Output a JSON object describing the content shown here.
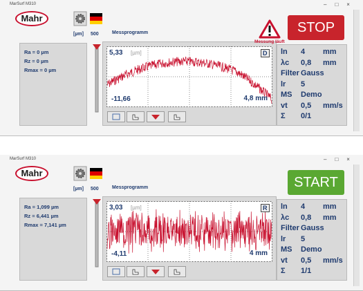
{
  "windows": [
    {
      "title_bar": "MarSurf M310",
      "logo": "Mahr",
      "scale_unit": "[µm]",
      "scale_value": "500",
      "program_label": "Messprogramm",
      "status": "Messung läuft",
      "button": "STOP",
      "results": [
        "Ra = 0 µm",
        "Rz = 0 µm",
        "Rmax = 0 µm"
      ],
      "chart": {
        "y_max": "5,33",
        "y_unit": "[µm]",
        "mode": "D",
        "y_min": "-11,66",
        "length": "4,8 mm"
      },
      "parameters": [
        [
          "ln",
          "4",
          "mm"
        ],
        [
          "λc",
          "0,8",
          "mm"
        ],
        [
          "Filter",
          "Gauss"
        ],
        [
          "lr",
          "5"
        ],
        [
          "MS",
          "Demo"
        ],
        [
          "vt",
          "0,5",
          "mm/s"
        ],
        [
          "Σ",
          "0/1"
        ]
      ]
    },
    {
      "title_bar": "MarSurf M310",
      "logo": "Mahr",
      "scale_unit": "[µm]",
      "scale_value": "500",
      "program_label": "Messprogramm",
      "button": "START",
      "results": [
        "Ra = 1,099 µm",
        "Rz = 6,441 µm",
        "Rmax = 7,141 µm"
      ],
      "chart": {
        "y_max": "3,03",
        "y_unit": "[µm]",
        "mode": "R",
        "y_min": "-4,11",
        "length": "4 mm"
      },
      "parameters": [
        [
          "ln",
          "4",
          "mm"
        ],
        [
          "λc",
          "0,8",
          "mm"
        ],
        [
          "Filter",
          "Gauss"
        ],
        [
          "lr",
          "5"
        ],
        [
          "MS",
          "Demo"
        ],
        [
          "vt",
          "0,5",
          "mm/s"
        ],
        [
          "Σ",
          "1/1"
        ]
      ]
    }
  ]
}
